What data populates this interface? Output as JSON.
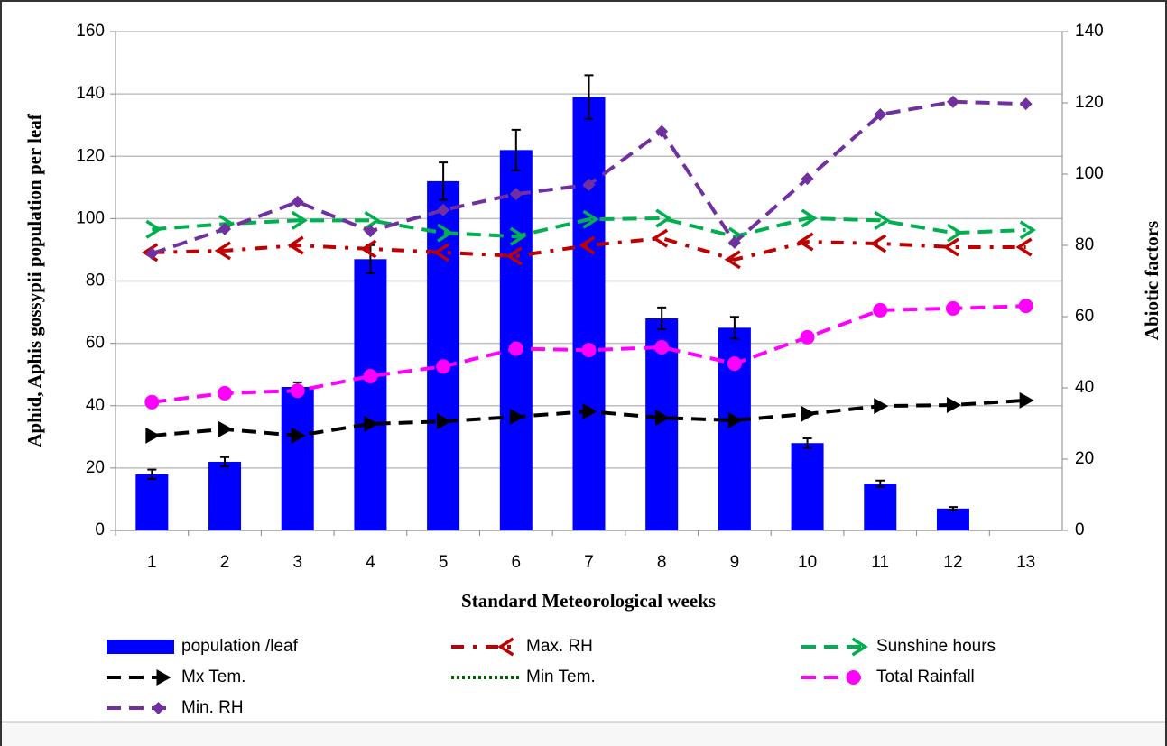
{
  "chart_data": {
    "type": "bar-line",
    "xlabel": "Standard Meteorological weeks",
    "ylabel": "Aphid, Aphis gossypii  population per leaf",
    "y2label": "Abiotic factors",
    "categories": [
      "1",
      "2",
      "3",
      "4",
      "5",
      "6",
      "7",
      "8",
      "9",
      "10",
      "11",
      "12",
      "13"
    ],
    "ylim": [
      0,
      160
    ],
    "yticks": [
      0,
      20,
      40,
      60,
      80,
      100,
      120,
      140,
      160
    ],
    "y2lim": [
      0,
      140
    ],
    "y2ticks": [
      0,
      20,
      40,
      60,
      80,
      100,
      120,
      140
    ],
    "grid": true,
    "series": [
      {
        "name": "population /leaf",
        "type": "bar",
        "color": "#0000ff",
        "values": [
          18,
          22,
          46,
          87,
          112,
          122,
          139,
          68,
          65,
          28,
          15,
          7,
          null
        ],
        "errors": [
          1.5,
          1.5,
          1.5,
          4.5,
          6,
          6.5,
          7,
          3.5,
          3.5,
          1.5,
          1,
          0.5,
          null
        ]
      },
      {
        "name": "Max. RH",
        "type": "line",
        "axis": "y2",
        "color": "#c00000",
        "marker": "arrow-left",
        "dash": "dashdot",
        "values": [
          78,
          78.5,
          80,
          79,
          78,
          77,
          80,
          82,
          76,
          81,
          80.5,
          79.5,
          79.5
        ]
      },
      {
        "name": "Sunshine hours",
        "type": "line",
        "axis": "y2",
        "color": "#00b050",
        "marker": "chevron-right",
        "dash": "dash",
        "values": [
          84.5,
          86,
          87,
          87,
          83.5,
          82.5,
          87.3,
          87.6,
          82.5,
          87.6,
          87,
          83.5,
          84.3
        ]
      },
      {
        "name": "Mx Tem.",
        "type": "line",
        "axis": "y2",
        "color": "#000000",
        "marker": "triangle-right",
        "dash": "dash",
        "values": [
          26.6,
          28.4,
          26.6,
          29.9,
          30.6,
          31.9,
          33.4,
          31.6,
          30.9,
          32.7,
          34.9,
          35.2,
          36.5
        ]
      },
      {
        "name": "Min Tem.",
        "type": "line",
        "axis": "y2",
        "color": "#006000",
        "marker": "none",
        "dash": "dot",
        "values": [
          null,
          null,
          null,
          null,
          null,
          null,
          null,
          null,
          null,
          null,
          null,
          null,
          null
        ]
      },
      {
        "name": "Total Rainfall",
        "type": "line",
        "axis": "y2",
        "color": "#ff00ff",
        "marker": "circle",
        "dash": "dash",
        "values": [
          36,
          38.5,
          39.2,
          43.3,
          46,
          51,
          50.6,
          51.4,
          46.8,
          54.2,
          61.8,
          62.3,
          63
        ]
      },
      {
        "name": "Min. RH",
        "type": "line",
        "axis": "y2",
        "color": "#7030a0",
        "marker": "diamond",
        "dash": "dash",
        "values": [
          77.7,
          84.6,
          92.2,
          84,
          89.9,
          94.4,
          97,
          112,
          80.8,
          98.7,
          116.7,
          120.3,
          119.7
        ]
      }
    ]
  }
}
